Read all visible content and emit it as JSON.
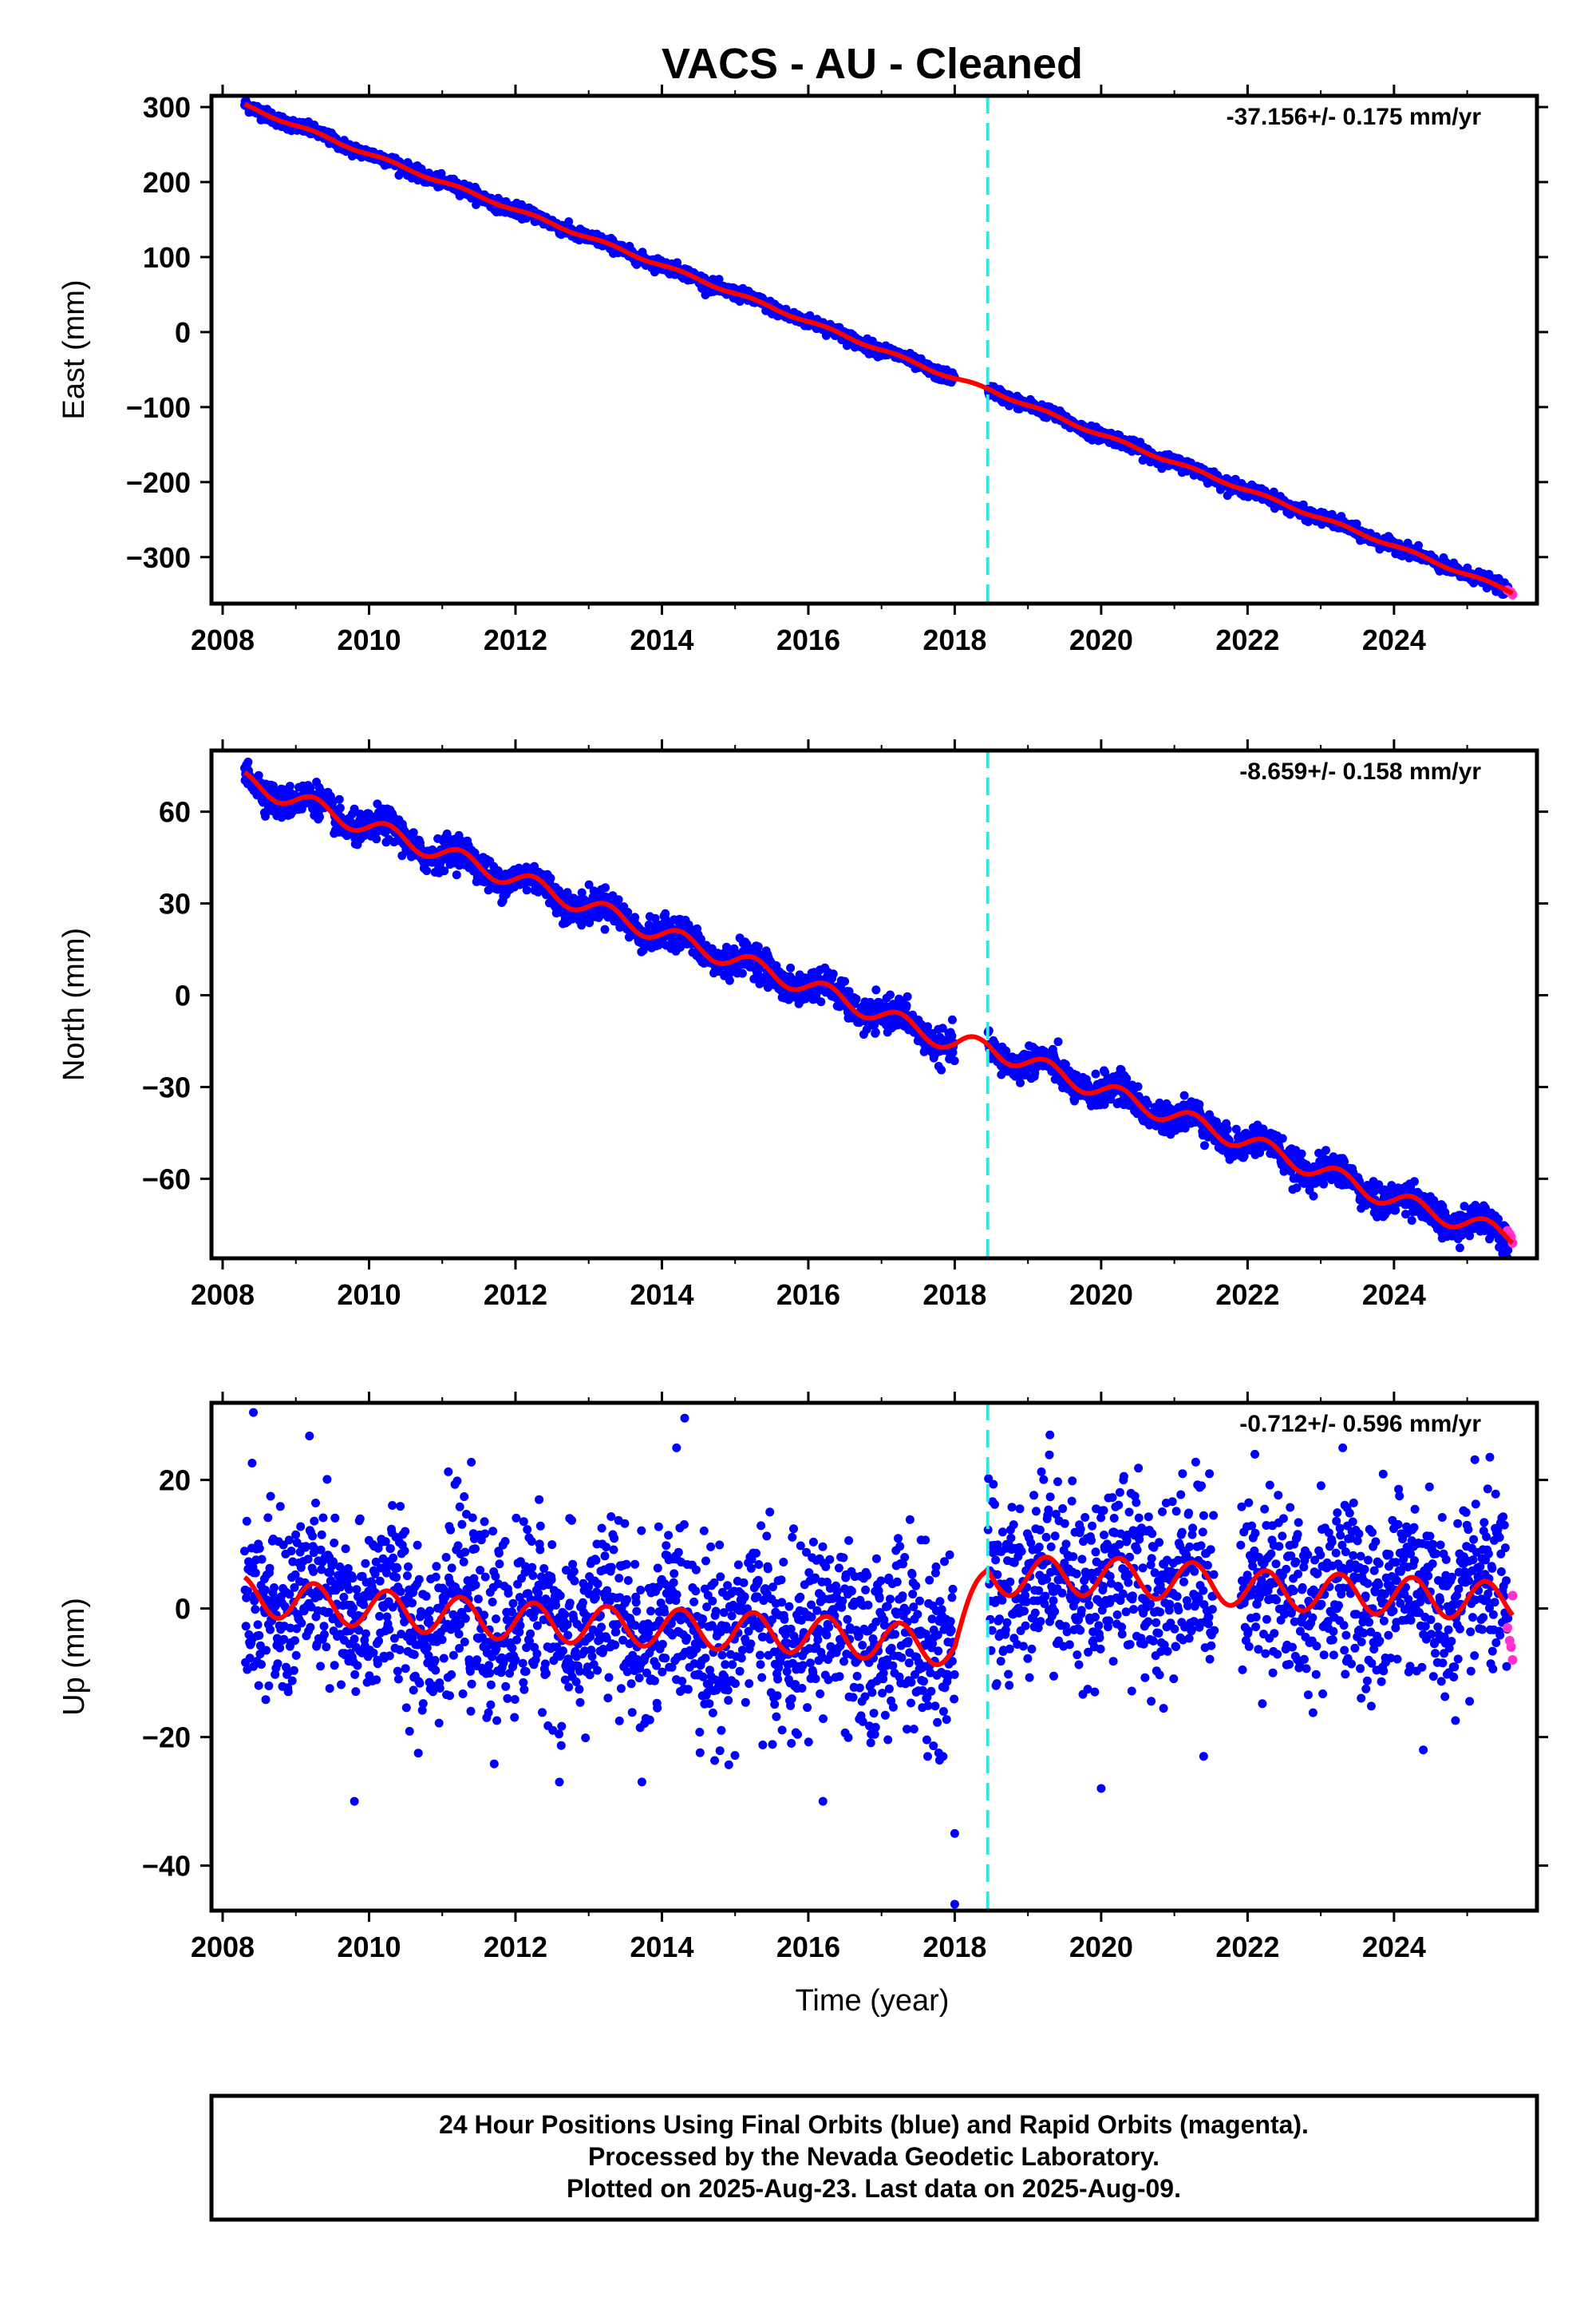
{
  "title": "VACS  - AU - Cleaned",
  "colors": {
    "final_orbits": "#0000ff",
    "rapid_orbits": "#ff33cc",
    "model_fit": "#ff0000",
    "event_line": "#33e6e6",
    "frame": "#000000"
  },
  "x_axis_label": "Time (year)",
  "footer": {
    "line1": "24 Hour Positions Using Final Orbits (blue) and Rapid Orbits (magenta).",
    "line2": "Processed by the Nevada Geodetic Laboratory.",
    "line3": "Plotted on 2025-Aug-23. Last data on 2025-Aug-09."
  },
  "chart_data": [
    {
      "type": "scatter",
      "component": "east",
      "ylabel": "East (mm)",
      "rate_label": "-37.156+/- 0.175 mm/yr",
      "xlim": [
        2008.0,
        2025.8
      ],
      "ylim": [
        -362,
        315
      ],
      "xticks": [
        2008,
        2010,
        2012,
        2014,
        2016,
        2018,
        2020,
        2022,
        2024
      ],
      "yticks": [
        -300,
        -200,
        -100,
        0,
        100,
        200,
        300
      ],
      "event_line_x": 2018.45,
      "data_start": 2008.3,
      "data_end": 2025.62,
      "gaps": [
        [
          2018.0,
          2018.45
        ]
      ],
      "trend_points": [
        [
          2008.3,
          302
        ],
        [
          2010.0,
          237
        ],
        [
          2012.0,
          163
        ],
        [
          2014.0,
          89
        ],
        [
          2016.0,
          14
        ],
        [
          2018.0,
          -62
        ],
        [
          2018.45,
          -76
        ],
        [
          2020.0,
          -137
        ],
        [
          2022.0,
          -211
        ],
        [
          2024.0,
          -285
        ],
        [
          2025.62,
          -347
        ]
      ],
      "seasonal_amplitude": 2,
      "scatter_noise": 4,
      "rapid_points": [
        [
          2025.55,
          -344
        ],
        [
          2025.58,
          -346
        ],
        [
          2025.6,
          -347
        ],
        [
          2025.62,
          -350
        ]
      ]
    },
    {
      "type": "scatter",
      "component": "north",
      "ylabel": "North (mm)",
      "rate_label": "-8.659+/- 0.158 mm/yr",
      "xlim": [
        2008.0,
        2025.8
      ],
      "ylim": [
        -86,
        80
      ],
      "xticks": [
        2008,
        2010,
        2012,
        2014,
        2016,
        2018,
        2020,
        2022,
        2024
      ],
      "yticks": [
        -60,
        -30,
        0,
        30,
        60
      ],
      "event_line_x": 2018.45,
      "data_start": 2008.3,
      "data_end": 2025.62,
      "gaps": [
        [
          2018.0,
          2018.45
        ]
      ],
      "trend_points": [
        [
          2008.3,
          70
        ],
        [
          2010.0,
          55
        ],
        [
          2012.0,
          38
        ],
        [
          2014.0,
          20
        ],
        [
          2016.0,
          3
        ],
        [
          2018.0,
          -16
        ],
        [
          2018.45,
          -17
        ],
        [
          2020.0,
          -31
        ],
        [
          2022.0,
          -48
        ],
        [
          2024.0,
          -67
        ],
        [
          2025.62,
          -79
        ]
      ],
      "seasonal_amplitude": 3,
      "scatter_noise": 2.5,
      "rapid_points": [
        [
          2025.55,
          -77
        ],
        [
          2025.58,
          -78
        ],
        [
          2025.6,
          -79
        ],
        [
          2025.62,
          -81
        ]
      ]
    },
    {
      "type": "scatter",
      "component": "up",
      "ylabel": "Up (mm)",
      "rate_label": "-0.712+/- 0.596 mm/yr",
      "xlim": [
        2008.0,
        2025.8
      ],
      "ylim": [
        -47,
        32
      ],
      "xticks": [
        2008,
        2010,
        2012,
        2014,
        2016,
        2018,
        2020,
        2022,
        2024
      ],
      "yticks": [
        -40,
        -20,
        0,
        20
      ],
      "event_line_x": 2018.45,
      "data_start": 2008.3,
      "data_end": 2025.62,
      "gaps": [
        [
          2018.0,
          2018.45
        ],
        [
          2021.55,
          2021.9
        ]
      ],
      "trend_points": [
        [
          2008.3,
          2
        ],
        [
          2010.0,
          0
        ],
        [
          2012.0,
          -2
        ],
        [
          2014.0,
          -3
        ],
        [
          2016.0,
          -4
        ],
        [
          2018.0,
          -6
        ],
        [
          2018.45,
          5
        ],
        [
          2020.0,
          5
        ],
        [
          2021.5,
          4
        ],
        [
          2022.0,
          3
        ],
        [
          2024.0,
          2
        ],
        [
          2025.62,
          1
        ]
      ],
      "seasonal_amplitude": 3,
      "scatter_noise": 7,
      "outliers": [
        [
          2008.42,
          30.5
        ],
        [
          2009.8,
          -30
        ],
        [
          2012.6,
          -27
        ],
        [
          2014.2,
          25
        ],
        [
          2016.2,
          -30
        ],
        [
          2018.0,
          -46
        ],
        [
          2018.0,
          -35
        ],
        [
          2019.3,
          27
        ],
        [
          2020.0,
          -28
        ],
        [
          2021.4,
          -23
        ],
        [
          2022.1,
          24
        ],
        [
          2023.3,
          25
        ],
        [
          2024.4,
          -22
        ]
      ],
      "rapid_points": [
        [
          2025.55,
          -3
        ],
        [
          2025.58,
          -5
        ],
        [
          2025.6,
          -6
        ],
        [
          2025.62,
          -8
        ],
        [
          2025.62,
          2
        ]
      ]
    }
  ]
}
